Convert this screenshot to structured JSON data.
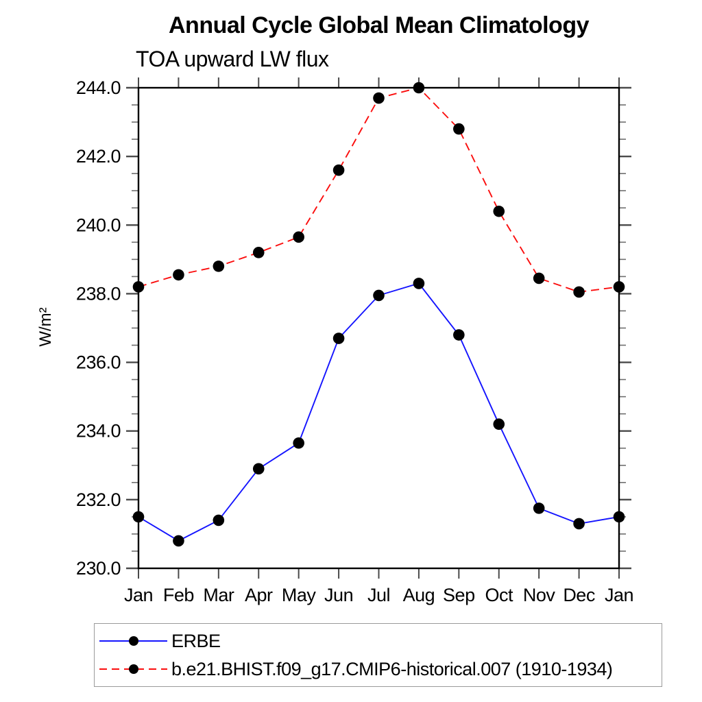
{
  "chart_data": {
    "type": "line",
    "title": "Annual Cycle Global Mean Climatology",
    "subtitle": "TOA upward LW flux",
    "ylabel": "W/m²",
    "xlabel": "",
    "categories": [
      "Jan",
      "Feb",
      "Mar",
      "Apr",
      "May",
      "Jun",
      "Jul",
      "Aug",
      "Sep",
      "Oct",
      "Nov",
      "Dec",
      "Jan"
    ],
    "ylim": [
      230.0,
      244.0
    ],
    "ytick_major_step": 2.0,
    "ytick_minor_step": 0.5,
    "ytick_labels": [
      "230.0",
      "232.0",
      "234.0",
      "236.0",
      "238.0",
      "240.0",
      "242.0",
      "244.0"
    ],
    "grid": false,
    "tick_style": "outward-all-four-sides",
    "legend_position": "bottom-left-boxed",
    "series": [
      {
        "name": "ERBE",
        "line_style": "solid",
        "color": "#1414ff",
        "marker": "filled-circle",
        "marker_color": "#000000",
        "values": [
          231.5,
          230.8,
          231.4,
          232.9,
          233.65,
          236.7,
          237.95,
          238.3,
          236.8,
          234.2,
          231.75,
          231.3,
          231.5
        ]
      },
      {
        "name": "b.e21.BHIST.f09_g17.CMIP6-historical.007 (1910-1934)",
        "line_style": "dashed",
        "color": "#fb0d0d",
        "marker": "filled-circle",
        "marker_color": "#000000",
        "values": [
          238.2,
          238.55,
          238.8,
          239.2,
          239.65,
          241.6,
          243.7,
          244.0,
          242.8,
          240.4,
          238.45,
          238.05,
          238.2
        ]
      }
    ],
    "colors": {
      "axis": "#000000",
      "major_tick": "#4a4a4a",
      "minor_tick": "#6e6e6e",
      "text": "#000000",
      "legend_border": "#9a9a9a",
      "background": "#ffffff"
    }
  }
}
